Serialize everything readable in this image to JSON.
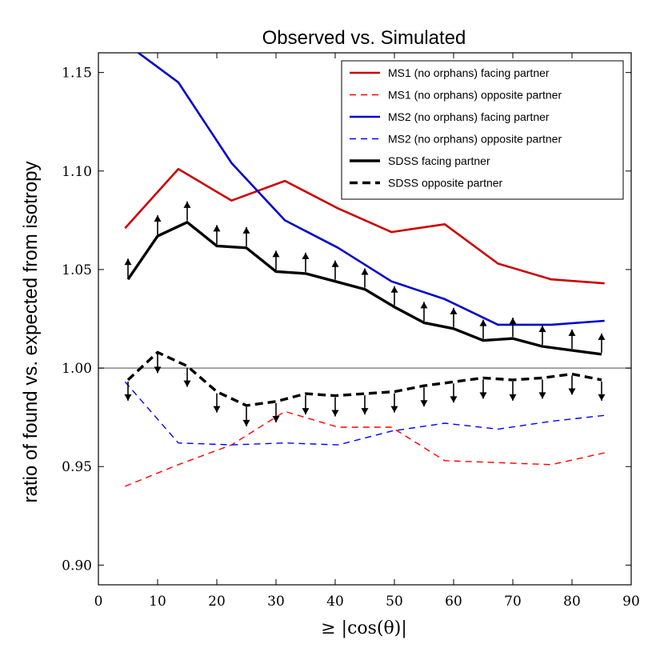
{
  "chart_data": {
    "type": "line",
    "title": "Observed vs. Simulated",
    "xlabel": "≥ |cos(θ)|",
    "ylabel": "ratio of found vs. expected from isotropy",
    "xlim": [
      0,
      90
    ],
    "ylim": [
      0.89,
      1.16
    ],
    "xticks": [
      0,
      10,
      20,
      30,
      40,
      50,
      60,
      70,
      80,
      90
    ],
    "xtick_labels": [
      "0",
      "10",
      "20",
      "30",
      "40",
      "50",
      "60",
      "70",
      "80",
      "90"
    ],
    "yticks": [
      0.9,
      0.95,
      1.0,
      1.05,
      1.1,
      1.15
    ],
    "ytick_labels": [
      "0.90",
      "0.95",
      "1.00",
      "1.05",
      "1.10",
      "1.15"
    ],
    "reference_line": 1.0,
    "grid": false,
    "legend_position": "top-right",
    "series": [
      {
        "name": "MS1 (no orphans) facing partner",
        "color": "#cc0000",
        "style": "solid",
        "width": "normal",
        "x": [
          4.5,
          13.5,
          22.5,
          31.5,
          40.5,
          49.5,
          58.5,
          67.5,
          76.5,
          85.5
        ],
        "y": [
          1.071,
          1.101,
          1.085,
          1.095,
          1.081,
          1.069,
          1.073,
          1.053,
          1.045,
          1.043
        ]
      },
      {
        "name": "MS1 (no orphans) opposite partner",
        "color": "#ff0000",
        "style": "dashed",
        "width": "thin",
        "x": [
          4.5,
          13.5,
          22.5,
          31.5,
          40.5,
          49.5,
          58.5,
          67.5,
          76.5,
          85.5
        ],
        "y": [
          0.94,
          0.951,
          0.961,
          0.978,
          0.97,
          0.97,
          0.953,
          0.952,
          0.951,
          0.957
        ]
      },
      {
        "name": "MS2 (no orphans) facing partner",
        "color": "#0000cc",
        "style": "solid",
        "width": "normal",
        "x": [
          4.5,
          13.5,
          22.5,
          31.5,
          40.5,
          49.5,
          58.5,
          67.5,
          76.5,
          85.5
        ],
        "y": [
          1.165,
          1.145,
          1.104,
          1.075,
          1.061,
          1.044,
          1.035,
          1.022,
          1.022,
          1.024
        ]
      },
      {
        "name": "MS2 (no orphans) opposite partner",
        "color": "#0000ff",
        "style": "dashed",
        "width": "thin",
        "x": [
          4.5,
          13.5,
          22.5,
          31.5,
          40.5,
          49.5,
          58.5,
          67.5,
          76.5,
          85.5
        ],
        "y": [
          0.993,
          0.962,
          0.961,
          0.962,
          0.961,
          0.968,
          0.972,
          0.969,
          0.973,
          0.976
        ]
      },
      {
        "name": "SDSS facing partner",
        "color": "#000000",
        "style": "solid",
        "width": "thick",
        "arrows": "up",
        "x": [
          5,
          10,
          15,
          20,
          25,
          30,
          35,
          40,
          45,
          50,
          55,
          60,
          65,
          70,
          75,
          80,
          85
        ],
        "y": [
          1.045,
          1.067,
          1.074,
          1.062,
          1.061,
          1.049,
          1.048,
          1.044,
          1.04,
          1.031,
          1.023,
          1.02,
          1.014,
          1.015,
          1.011,
          1.009,
          1.007
        ]
      },
      {
        "name": "SDSS opposite partner",
        "color": "#000000",
        "style": "dashed",
        "width": "thick",
        "arrows": "down",
        "x": [
          5,
          10,
          15,
          20,
          25,
          30,
          35,
          40,
          45,
          50,
          55,
          60,
          65,
          70,
          75,
          80,
          85
        ],
        "y": [
          0.994,
          1.008,
          1.001,
          0.988,
          0.981,
          0.983,
          0.987,
          0.986,
          0.987,
          0.988,
          0.991,
          0.993,
          0.995,
          0.994,
          0.995,
          0.997,
          0.994
        ]
      }
    ]
  }
}
